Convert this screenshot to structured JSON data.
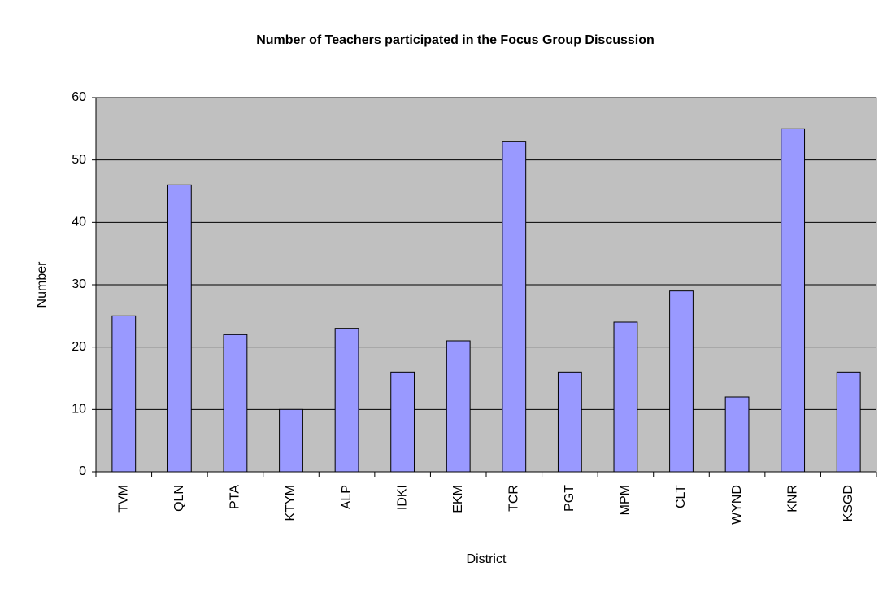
{
  "chart_data": {
    "type": "bar",
    "title": "Number of Teachers participated in the Focus Group Discussion",
    "x_label": "District",
    "y_label": "Number",
    "categories": [
      "TVM",
      "QLN",
      "PTA",
      "KTYM",
      "ALP",
      "IDKI",
      "EKM",
      "TCR",
      "PGT",
      "MPM",
      "CLT",
      "WYND",
      "KNR",
      "KSGD"
    ],
    "values": [
      25,
      46,
      22,
      10,
      23,
      16,
      21,
      53,
      16,
      24,
      29,
      12,
      55,
      16
    ],
    "color": "#9999ff",
    "ylim": [
      0,
      60
    ],
    "yticks": [
      0,
      10,
      20,
      30,
      40,
      50,
      60
    ],
    "grid": true
  }
}
